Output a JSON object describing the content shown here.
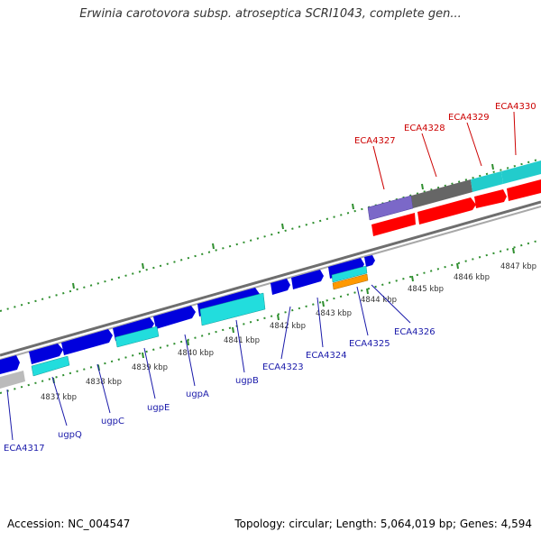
{
  "title": "Erwinia carotovora subsp. atroseptica SCRI1043, complete gen...",
  "footer": {
    "accession": "Accession: NC_004547",
    "topology": "Topology: circular; Length: 5,064,019 bp; Genes: 4,594"
  },
  "colors": {
    "forward_cds": "#0000dd",
    "reverse_cds": "#ff0000",
    "rna_cyan": "#22cccc",
    "grey_feature": "#707070",
    "purple_feature": "#7b68c8",
    "orange_feature": "#ff9900",
    "tick_green": "#2f8f2f",
    "backbone": "#888888",
    "label_blue": "#1a1aaa",
    "label_red": "#cc0000"
  },
  "scale_labels": [
    "4837 kbp",
    "4838 kbp",
    "4839 kbp",
    "4840 kbp",
    "4841 kbp",
    "4842 kbp",
    "4843 kbp",
    "4844 kbp",
    "4845 kbp",
    "4846 kbp",
    "4847 kbp"
  ],
  "gene_labels_lower": [
    "ECA4317",
    "ugpQ",
    "ugpC",
    "ugpE",
    "ugpA",
    "ugpB",
    "ECA4323",
    "ECA4324",
    "ECA4325",
    "ECA4326"
  ],
  "gene_labels_upper": [
    "ECA4327",
    "ECA4328",
    "ECA4329",
    "ECA4330"
  ]
}
